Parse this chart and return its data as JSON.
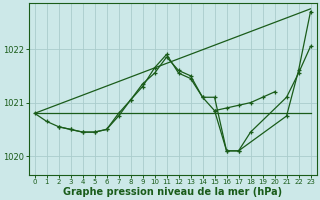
{
  "background_color": "#cce8e8",
  "grid_color": "#aacccc",
  "line_color": "#1a5c1a",
  "xlabel": "Graphe pression niveau de la mer (hPa)",
  "xlabel_fontsize": 7.0,
  "xlim": [
    -0.5,
    23.5
  ],
  "ylim": [
    1019.65,
    1022.85
  ],
  "yticks": [
    1020,
    1021,
    1022
  ],
  "xticks": [
    0,
    1,
    2,
    3,
    4,
    5,
    6,
    7,
    8,
    9,
    10,
    11,
    12,
    13,
    14,
    15,
    16,
    17,
    18,
    19,
    20,
    21,
    22,
    23
  ],
  "series": [
    {
      "x": [
        0,
        23
      ],
      "y": [
        1020.8,
        1022.75
      ],
      "marker": false,
      "lw": 0.9
    },
    {
      "x": [
        0,
        1,
        23
      ],
      "y": [
        1020.8,
        1020.8,
        1020.8
      ],
      "marker": false,
      "lw": 0.9
    },
    {
      "x": [
        0,
        1,
        2,
        3,
        4,
        5,
        6,
        7,
        8,
        9,
        10,
        11,
        12,
        13,
        14,
        15,
        16,
        17,
        18,
        19,
        20
      ],
      "y": [
        1020.8,
        1020.65,
        1020.55,
        1020.5,
        1020.45,
        1020.45,
        1020.5,
        1020.8,
        1021.05,
        1021.35,
        1021.55,
        1021.85,
        1021.6,
        1021.5,
        1021.1,
        1020.85,
        1020.9,
        1020.95,
        1021.0,
        1021.1,
        1021.2
      ],
      "marker": true,
      "lw": 0.9
    },
    {
      "x": [
        2,
        3,
        4,
        5,
        6,
        7,
        8,
        9,
        10,
        11,
        12,
        13,
        14,
        15,
        16,
        17,
        18,
        21,
        22,
        23
      ],
      "y": [
        1020.55,
        1020.5,
        1020.45,
        1020.45,
        1020.5,
        1020.75,
        1021.05,
        1021.3,
        1021.65,
        1021.9,
        1021.55,
        1021.45,
        1021.1,
        1021.1,
        1020.1,
        1020.1,
        1020.45,
        1021.1,
        1021.55,
        1022.05
      ],
      "marker": true,
      "lw": 0.9
    },
    {
      "x": [
        15,
        16,
        17,
        21,
        22,
        23
      ],
      "y": [
        1020.85,
        1020.1,
        1020.1,
        1020.75,
        1021.6,
        1022.7
      ],
      "marker": true,
      "lw": 0.9
    }
  ]
}
